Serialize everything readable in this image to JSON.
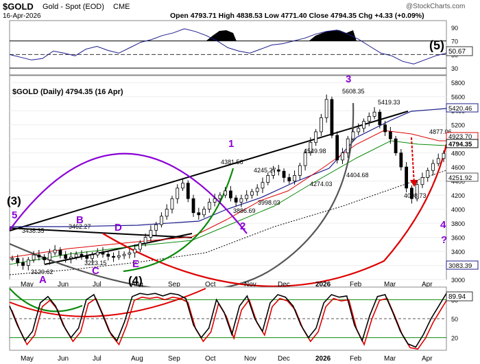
{
  "header": {
    "symbol": "$GOLD",
    "name": "Gold - Spot (EOD)",
    "exchange": "CME",
    "date": "16-Apr-2026",
    "ohlc": "Open 4793.71  High 4838.53  Low 4771.40  Close 4794.35  Chg +4.33 (+0.09%)",
    "watermark": "@StockCharts.com"
  },
  "chart_data": [
    {
      "type": "line",
      "panel": "rsi",
      "y_ticks": [
        30,
        50,
        70,
        90
      ],
      "ylim": [
        20,
        100
      ],
      "reference_lines": [
        30,
        50,
        70
      ],
      "last_value": 50.67,
      "last_value_label": "50.67",
      "wave_label": "(5)",
      "values": [
        50,
        46,
        42,
        44,
        55,
        52,
        48,
        58,
        62,
        56,
        52,
        60,
        68,
        72,
        78,
        82,
        88,
        84,
        78,
        70,
        60,
        55,
        52,
        58,
        64,
        66,
        70,
        74,
        80,
        84,
        86,
        80,
        72,
        62,
        52,
        48,
        40,
        36,
        42,
        48,
        52
      ]
    },
    {
      "type": "candlestick",
      "panel": "price",
      "title": "$GOLD (Daily) 4794.35 (16 Apr)",
      "ylim": [
        3000,
        5900
      ],
      "y_ticks": [
        3000,
        3200,
        3400,
        3600,
        3800,
        4000,
        4200,
        4400,
        4600,
        4800,
        5000,
        5200,
        5400,
        5600,
        5800
      ],
      "x_labels": [
        "May",
        "Jun",
        "Jul",
        "Aug",
        "Sep",
        "Oct",
        "Nov",
        "Dec",
        "2026",
        "Feb",
        "Mar",
        "Apr"
      ],
      "closes": [
        3300,
        3240,
        3200,
        3280,
        3350,
        3320,
        3280,
        3380,
        3420,
        3350,
        3300,
        3320,
        3360,
        3330,
        3300,
        3350,
        3390,
        3360,
        3330,
        3320,
        3340,
        3360,
        3380,
        3430,
        3520,
        3600,
        3700,
        3780,
        3900,
        4000,
        4150,
        4300,
        4370,
        4150,
        3950,
        3920,
        4000,
        4100,
        4150,
        4200,
        4260,
        4160,
        4100,
        4150,
        4200,
        4250,
        4300,
        4380,
        4480,
        4560,
        4540,
        4450,
        4400,
        4480,
        4620,
        4800,
        4950,
        5100,
        5300,
        5560,
        5050,
        4700,
        4800,
        5000,
        5100,
        5150,
        5250,
        5320,
        5380,
        5200,
        5100,
        5000,
        4800,
        4600,
        4300,
        4150,
        4350,
        4450,
        4550,
        4650,
        4720,
        4794
      ],
      "price_labels": [
        "3438.35",
        "3462.27",
        "3223.15",
        "3120.62",
        "4381.56",
        "3886.69",
        "4245.27",
        "3998.03",
        "4549.98",
        "4274.03",
        "5608.35",
        "4404.68",
        "5419.33",
        "4098.73",
        "4877.06"
      ],
      "wave_labels": [
        "(3)",
        "5",
        "A",
        "B",
        "C",
        "D",
        "E",
        "(4)",
        "1",
        "2",
        "3",
        "4",
        "?"
      ],
      "right_labels": [
        "5420.46",
        "4923.70",
        "4794.35",
        "4251.92",
        "3083.39"
      ]
    },
    {
      "type": "line",
      "panel": "stochastic",
      "ylim": [
        0,
        100
      ],
      "y_ticks": [
        20,
        50,
        80
      ],
      "reference_lines": [
        20,
        80
      ],
      "last_value": 89.94,
      "last_value_label": "89.94",
      "x_labels": [
        "May",
        "Jun",
        "Jul",
        "Aug",
        "Sep",
        "Oct",
        "Nov",
        "Dec",
        "2026",
        "Feb",
        "Mar",
        "Apr"
      ],
      "values": [
        70,
        40,
        15,
        30,
        75,
        85,
        70,
        40,
        20,
        35,
        80,
        88,
        60,
        30,
        15,
        45,
        85,
        90,
        88,
        90,
        86,
        90,
        88,
        82,
        40,
        20,
        35,
        80,
        60,
        25,
        70,
        86,
        50,
        30,
        75,
        88,
        84,
        70,
        40,
        20,
        35,
        75,
        88,
        84,
        86,
        40,
        15,
        55,
        85,
        88,
        60,
        30,
        10,
        5,
        25,
        50,
        70,
        90
      ]
    }
  ]
}
